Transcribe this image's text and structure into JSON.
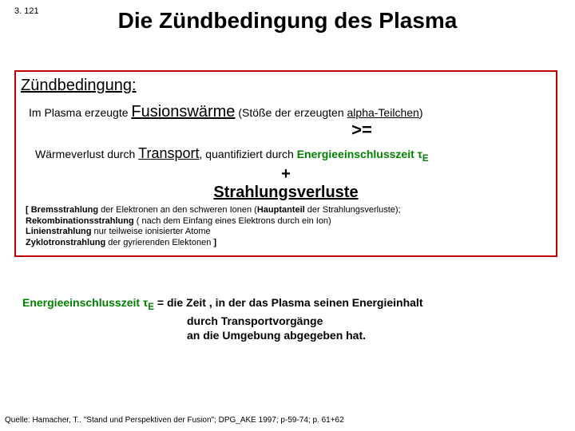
{
  "slideNumber": "3. 121",
  "title": "Die Zündbedingung des Plasma",
  "heading": "Zündbedingung:",
  "line1_pre": "Im Plasma erzeugte ",
  "line1_fusion": "Fusionswärme",
  "line1_mid": " (Stöße der erzeugten  ",
  "line1_alpha": "alpha-Teilchen",
  "line1_close": ")",
  "gte": ">=",
  "line2_pre": "Wärmeverlust durch ",
  "line2_transport": "Transport",
  "line2_mid": ", quantifiziert durch ",
  "line2_green": "Energieeinschlusszeit τ",
  "line2_sub": "E",
  "plus": "+",
  "strahlung": "Strahlungsverluste",
  "sb_open": "[ ",
  "sb_brems_b": "Bremsstrahlung",
  "sb_brems_t": " der Elektronen an den schweren Ionen (",
  "sb_haupt_b": "Hauptanteil",
  "sb_brems_end": " der Strahlungsverluste);",
  "sb_rekomb_b": "Rekombinationsstrahlung",
  "sb_rekomb_t": " ( nach dem Einfang eines Elektrons durch ein Ion)",
  "sb_linien_b": "Linienstrahlung",
  "sb_linien_t": " nur teilweise ionisierter Atome",
  "sb_zyklo_b": "Zyklotronstrahlung",
  "sb_zyklo_t": " der gyrierenden Elektonen ",
  "sb_close": "]",
  "def_green": "Energieeinschlusszeit τ",
  "def_sub": "E",
  "def_eq": " = die Zeit , in der das Plasma seinen Energieinhalt",
  "def_l2": "durch Transportvorgänge",
  "def_l3": "an die Umgebung abgegeben hat.",
  "source": "Quelle: Hamacher, T.. \"Stand und Perspektiven der Fusion\";  DPG_AKE 1997; p-59-74; p. 61+62"
}
